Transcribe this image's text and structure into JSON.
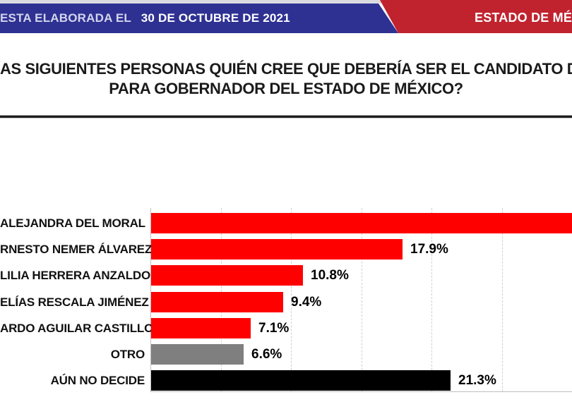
{
  "banner": {
    "left_prefix": "ESTA ELABORADA EL",
    "date": "30 DE OCTUBRE DE 2021",
    "right_label": "ESTADO DE MÉ"
  },
  "title": {
    "line1": "AS SIGUIENTES PERSONAS QUIÉN CREE QUE DEBERÍA SER EL CANDIDATO D",
    "line2": "PARA GOBERNADOR DEL ESTADO DE MÉXICO?"
  },
  "colors": {
    "banner_blue": "#2e3192",
    "banner_red": "#c0232e",
    "top_strip": "#dadbe1",
    "bar_red": "#ff0000",
    "bar_gray": "#7f7f7f",
    "bar_black": "#000000",
    "grid": "#cfcfcf",
    "axis": "#bfbfbf"
  },
  "chart_data": {
    "type": "bar",
    "orientation": "horizontal",
    "unit": "%",
    "xlim": [
      0,
      30
    ],
    "grid_style": "dashed-vertical",
    "gridlines_pct": [
      5,
      10,
      15,
      20,
      25
    ],
    "legend": "none",
    "rows": [
      {
        "label": "ALEJANDRA DEL MORAL",
        "value": null,
        "value_label": "",
        "color": "#ff0000",
        "clipped_at_right_edge": true
      },
      {
        "label": "RNESTO NEMER ÁLVAREZ",
        "value": 17.9,
        "value_label": "17.9%",
        "color": "#ff0000",
        "clipped_at_right_edge": false
      },
      {
        "label": "LILIA HERRERA ANZALDO",
        "value": 10.8,
        "value_label": "10.8%",
        "color": "#ff0000",
        "clipped_at_right_edge": false
      },
      {
        "label": "ELÍAS RESCALA JIMÉNEZ",
        "value": 9.4,
        "value_label": "9.4%",
        "color": "#ff0000",
        "clipped_at_right_edge": false
      },
      {
        "label": "ARDO AGUILAR CASTILLO",
        "value": 7.1,
        "value_label": "7.1%",
        "color": "#ff0000",
        "clipped_at_right_edge": false
      },
      {
        "label": "OTRO",
        "value": 6.6,
        "value_label": "6.6%",
        "color": "#7f7f7f",
        "clipped_at_right_edge": false
      },
      {
        "label": "AÚN NO DECIDE",
        "value": 21.3,
        "value_label": "21.3%",
        "color": "#000000",
        "clipped_at_right_edge": false
      }
    ],
    "note_visible_state": "first bar runs past the right image edge, its value label is not visible"
  }
}
